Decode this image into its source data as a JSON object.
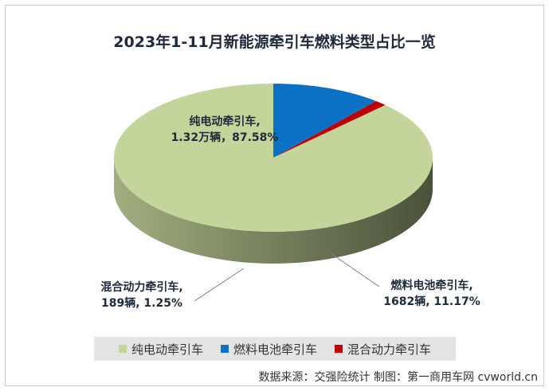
{
  "chart_data": {
    "type": "pie",
    "title": "2023年1-11月新能源牵引车燃料类型占比一览",
    "slices": [
      {
        "name": "纯电动牵引车",
        "label_line1": "纯电动牵引车,",
        "label_line2": "1.32万辆，87.58%",
        "value": 87.58,
        "color": "#c4d59b"
      },
      {
        "name": "燃料电池牵引车",
        "label_line1": "燃料电池牵引车,",
        "label_line2": "1682辆, 11.17%",
        "value": 11.17,
        "color": "#0a71c4"
      },
      {
        "name": "混合动力牵引车",
        "label_line1": "混合动力牵引车,",
        "label_line2": "189辆, 1.25%",
        "value": 1.25,
        "color": "#c00000"
      }
    ],
    "legend": [
      "纯电动牵引车",
      "燃料电池牵引车",
      "混合动力牵引车"
    ],
    "legend_position": "bottom"
  },
  "source_note": "数据来源：交强险统计  制图：第一商用车网 cvworld.cn"
}
